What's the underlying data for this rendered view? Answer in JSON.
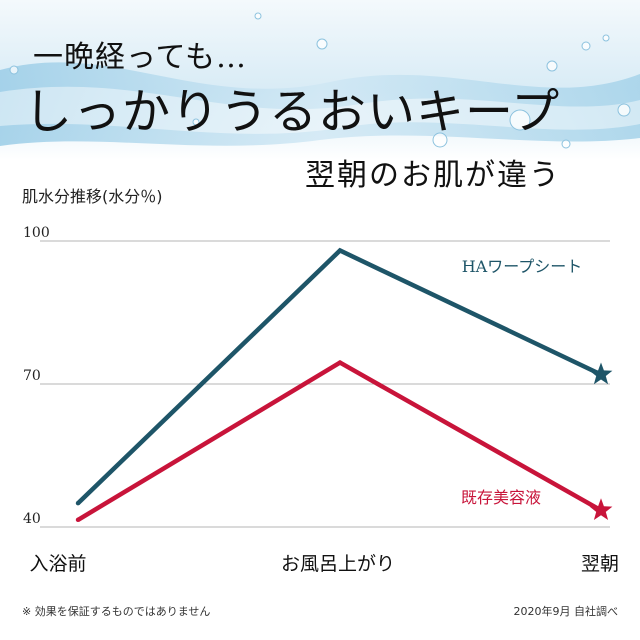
{
  "headline": {
    "line1": "一晩経っても…",
    "line2": "しっかりうるおいキープ",
    "line3": "翌朝のお肌が違う"
  },
  "colors": {
    "banner_light": "#eef6fb",
    "banner_water": "#a9d3ea",
    "series_ha": "#1e5568",
    "series_existing": "#c8143a"
  },
  "chart_data": {
    "type": "line",
    "ylabel": "肌水分推移(水分％)",
    "categories": [
      "入浴前",
      "お風呂上がり",
      "翌朝"
    ],
    "ylim": [
      40,
      100
    ],
    "yticks": [
      100,
      70,
      40
    ],
    "grid": "horizontal",
    "series": [
      {
        "name": "HAワープシート",
        "values": [
          45,
          98,
          72
        ],
        "color": "#1e5568",
        "end_marker": "star"
      },
      {
        "name": "既存美容液",
        "values": [
          41.5,
          74.5,
          43.5
        ],
        "color": "#c8143a",
        "end_marker": "star"
      }
    ]
  },
  "footer": {
    "note": "※ 効果を保証するものではありません",
    "source": "2020年9月 自社調べ"
  }
}
